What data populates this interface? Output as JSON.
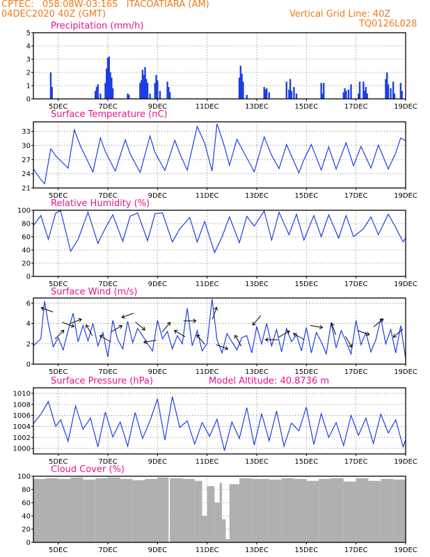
{
  "header": {
    "line1": "CPTEC:   058:08W-03:16S   ITACOATIARA (AM)",
    "line2": "04DEC2020 40Z (GMT)",
    "grid_note": "Vertical Grid Line: 40Z",
    "code": "TQ0126L028"
  },
  "colors": {
    "header": "#f07818",
    "titles": "#e8128c",
    "series": "#1c3fe0",
    "cloud": "#b0b0b0"
  },
  "chart_data": [
    {
      "type": "bar",
      "title": "Precipitation  (mm/h)",
      "x_ticks": [
        "5DEC",
        "7DEC",
        "9DEC",
        "11DEC",
        "13DEC",
        "15DEC",
        "17DEC",
        "19DEC"
      ],
      "ylim": [
        0,
        5
      ],
      "y_ticks": [
        "0",
        "1",
        "2",
        "3",
        "4",
        "5"
      ],
      "grid": true,
      "x": [
        4.7,
        4.75,
        6.5,
        6.55,
        6.6,
        6.7,
        6.9,
        6.95,
        7.0,
        7.05,
        7.1,
        7.15,
        7.2,
        7.8,
        7.85,
        8.3,
        8.35,
        8.4,
        8.45,
        8.5,
        8.55,
        8.6,
        8.7,
        8.9,
        8.95,
        9.0,
        9.1,
        9.4,
        9.45,
        9.5,
        12.3,
        12.35,
        12.4,
        12.45,
        12.6,
        13.3,
        13.35,
        13.4,
        13.5,
        14.2,
        14.3,
        14.35,
        14.4,
        14.5,
        14.6,
        15.6,
        15.65,
        15.7,
        16.5,
        16.55,
        16.6,
        16.7,
        16.8,
        17.1,
        17.15,
        17.3,
        17.35,
        17.4,
        17.45,
        18.2,
        18.25,
        18.3,
        18.4,
        18.5,
        18.55,
        18.8,
        18.85
      ],
      "values": [
        2.0,
        0.9,
        0.6,
        0.9,
        1.1,
        0.4,
        1.2,
        2.3,
        3.1,
        3.2,
        2.0,
        1.6,
        0.8,
        0.4,
        0.3,
        1.2,
        1.4,
        2.2,
        1.8,
        2.4,
        1.5,
        1.2,
        0.4,
        1.2,
        1.8,
        1.4,
        0.6,
        1.3,
        0.9,
        0.5,
        1.6,
        2.5,
        1.9,
        1.3,
        0.3,
        0.9,
        0.7,
        0.8,
        0.5,
        1.3,
        0.7,
        1.5,
        0.6,
        0.9,
        0.4,
        1.2,
        0.4,
        1.2,
        0.5,
        0.8,
        0.6,
        0.7,
        1.1,
        0.4,
        1.3,
        1.3,
        0.6,
        0.9,
        0.4,
        1.5,
        2.0,
        1.1,
        0.8,
        1.3,
        0.4,
        1.2,
        0.6
      ]
    },
    {
      "type": "line",
      "title": "Surface Temperature  (nC)",
      "x_ticks": [
        "5DEC",
        "7DEC",
        "9DEC",
        "11DEC",
        "13DEC",
        "15DEC",
        "17DEC",
        "19DEC"
      ],
      "ylim": [
        21,
        35
      ],
      "y_ticks": [
        "21",
        "24",
        "27",
        "30",
        "33"
      ],
      "grid": true,
      "x": [
        4.0,
        4.3,
        4.45,
        4.7,
        4.9,
        5.4,
        5.65,
        5.9,
        6.4,
        6.7,
        6.9,
        7.3,
        7.7,
        7.9,
        8.3,
        8.7,
        8.9,
        9.3,
        9.7,
        9.9,
        10.2,
        10.6,
        10.9,
        11.2,
        11.4,
        11.7,
        11.9,
        12.2,
        12.6,
        12.9,
        13.3,
        13.6,
        13.9,
        14.2,
        14.7,
        14.9,
        15.2,
        15.6,
        15.9,
        16.2,
        16.6,
        16.9,
        17.2,
        17.6,
        17.9,
        18.3,
        18.6,
        18.8,
        19.0
      ],
      "values": [
        25.0,
        22.8,
        21.9,
        29.3,
        27.8,
        25.2,
        33.3,
        29.8,
        24.4,
        31.6,
        28.7,
        24.6,
        31.2,
        28.2,
        24.3,
        32.0,
        28.5,
        24.7,
        31.1,
        28.3,
        24.8,
        34.0,
        30.5,
        24.6,
        34.6,
        29.8,
        25.8,
        31.3,
        27.4,
        24.4,
        31.8,
        27.9,
        25.1,
        30.2,
        24.2,
        27.0,
        30.2,
        24.8,
        29.7,
        25.0,
        30.6,
        25.7,
        29.8,
        25.2,
        30.1,
        25.0,
        28.4,
        31.6,
        31.0
      ]
    },
    {
      "type": "line",
      "title": "Relative Humidity  (%)",
      "x_ticks": [
        "5DEC",
        "7DEC",
        "9DEC",
        "11DEC",
        "13DEC",
        "15DEC",
        "17DEC",
        "19DEC"
      ],
      "ylim": [
        0,
        100
      ],
      "y_ticks": [
        "0",
        "20",
        "40",
        "60",
        "80",
        "100"
      ],
      "grid": true,
      "x": [
        4.0,
        4.3,
        4.6,
        4.9,
        5.1,
        5.5,
        5.8,
        6.2,
        6.6,
        6.9,
        7.2,
        7.6,
        7.9,
        8.2,
        8.6,
        8.9,
        9.2,
        9.6,
        9.9,
        10.3,
        10.6,
        10.9,
        11.3,
        11.6,
        11.9,
        12.3,
        12.6,
        12.9,
        13.3,
        13.6,
        13.9,
        14.3,
        14.6,
        14.9,
        15.3,
        15.6,
        15.9,
        16.3,
        16.6,
        16.9,
        17.3,
        17.6,
        17.9,
        18.3,
        18.6,
        18.9,
        19.0
      ],
      "values": [
        77,
        92,
        56,
        96,
        99,
        38,
        56,
        97,
        50,
        73,
        93,
        53,
        91,
        96,
        54,
        95,
        96,
        52,
        72,
        89,
        52,
        83,
        36,
        60,
        90,
        51,
        91,
        76,
        99,
        55,
        97,
        63,
        94,
        55,
        92,
        60,
        93,
        58,
        92,
        60,
        72,
        90,
        63,
        94,
        74,
        52,
        58
      ]
    },
    {
      "type": "line",
      "title": "Surface Wind  (m/s)",
      "x_ticks": [
        "5DEC",
        "7DEC",
        "9DEC",
        "11DEC",
        "13DEC",
        "15DEC",
        "17DEC",
        "19DEC"
      ],
      "ylim": [
        0,
        6.5
      ],
      "y_ticks": [
        "0",
        "2",
        "4",
        "6"
      ],
      "grid": true,
      "x": [
        4.0,
        4.3,
        4.45,
        4.6,
        4.8,
        5.0,
        5.2,
        5.4,
        5.6,
        5.8,
        6.0,
        6.2,
        6.4,
        6.6,
        6.8,
        7.0,
        7.2,
        7.4,
        7.6,
        7.8,
        8.0,
        8.2,
        8.4,
        8.6,
        8.8,
        9.0,
        9.2,
        9.4,
        9.6,
        9.8,
        10.0,
        10.2,
        10.4,
        10.6,
        10.8,
        11.0,
        11.2,
        11.4,
        11.6,
        11.8,
        12.0,
        12.2,
        12.4,
        12.6,
        12.8,
        13.0,
        13.2,
        13.4,
        13.6,
        13.8,
        14.0,
        14.2,
        14.4,
        14.6,
        14.8,
        15.0,
        15.2,
        15.4,
        15.6,
        15.8,
        16.0,
        16.2,
        16.4,
        16.6,
        16.8,
        17.0,
        17.2,
        17.4,
        17.6,
        17.8,
        18.0,
        18.2,
        18.4,
        18.6,
        18.8,
        19.0
      ],
      "values": [
        1.8,
        2.5,
        6.2,
        4.0,
        1.7,
        2.6,
        1.4,
        3.3,
        5.0,
        2.2,
        3.8,
        2.3,
        4.0,
        1.8,
        3.1,
        0.7,
        4.3,
        2.4,
        1.5,
        4.2,
        2.1,
        3.5,
        2.8,
        2.0,
        1.3,
        4.3,
        2.5,
        3.2,
        1.5,
        2.8,
        2.0,
        5.5,
        1.8,
        3.3,
        1.3,
        2.0,
        6.4,
        2.4,
        1.1,
        3.0,
        2.2,
        1.4,
        2.6,
        2.8,
        1.1,
        3.7,
        2.0,
        4.0,
        1.8,
        3.4,
        1.2,
        3.5,
        2.2,
        2.9,
        1.3,
        3.6,
        1.1,
        3.1,
        2.2,
        1.0,
        4.1,
        1.6,
        3.3,
        2.2,
        1.0,
        4.3,
        1.9,
        3.1,
        1.2,
        2.4,
        4.5,
        2.0,
        3.4,
        1.1,
        3.8,
        0.5
      ]
    },
    {
      "type": "line",
      "title": "Surface Pressure  (hPa)",
      "subtitle": "Model Altitude: 40.8736  m",
      "x_ticks": [
        "5DEC",
        "7DEC",
        "9DEC",
        "11DEC",
        "13DEC",
        "15DEC",
        "17DEC",
        "19DEC"
      ],
      "ylim": [
        999,
        1011
      ],
      "y_ticks": [
        "1000",
        "1002",
        "1004",
        "1006",
        "1008",
        "1010"
      ],
      "grid": true,
      "x": [
        4.0,
        4.3,
        4.6,
        4.9,
        5.1,
        5.4,
        5.7,
        6.0,
        6.3,
        6.6,
        6.9,
        7.2,
        7.5,
        7.8,
        8.1,
        8.4,
        8.7,
        9.0,
        9.3,
        9.6,
        9.9,
        10.2,
        10.5,
        10.8,
        11.1,
        11.4,
        11.7,
        12.0,
        12.3,
        12.6,
        12.9,
        13.2,
        13.5,
        13.8,
        14.1,
        14.4,
        14.7,
        15.0,
        15.3,
        15.6,
        15.9,
        16.2,
        16.5,
        16.8,
        17.1,
        17.4,
        17.7,
        18.0,
        18.3,
        18.6,
        18.9,
        19.0
      ],
      "values": [
        1004.5,
        1006.2,
        1008.5,
        1004.0,
        1005.2,
        1001.3,
        1007.7,
        1003.5,
        1005.5,
        1000.3,
        1006.6,
        1002.1,
        1004.8,
        1000.4,
        1006.5,
        1001.8,
        1005.0,
        1009.0,
        1001.5,
        1009.4,
        1003.8,
        1005.0,
        1000.8,
        1004.7,
        1002.2,
        1005.3,
        999.6,
        1004.8,
        1001.8,
        1007.4,
        1000.6,
        1006.3,
        1001.4,
        1006.8,
        1000.4,
        1004.6,
        1003.2,
        1007.5,
        1000.7,
        1006.3,
        1002.0,
        1004.7,
        1000.5,
        1006.0,
        1002.4,
        1005.5,
        1000.9,
        1006.2,
        1002.8,
        1005.2,
        1000.3,
        1001.6
      ]
    },
    {
      "type": "bar",
      "title": "Cloud Cover  (%)",
      "x_ticks": [
        "5DEC",
        "7DEC",
        "9DEC",
        "11DEC",
        "13DEC",
        "15DEC",
        "17DEC",
        "19DEC"
      ],
      "ylim": [
        0,
        100
      ],
      "y_ticks": [
        "0",
        "20",
        "40",
        "60",
        "80",
        "100"
      ],
      "grid": true,
      "x": [
        4.0,
        4.5,
        5.0,
        5.5,
        6.0,
        6.5,
        7.0,
        7.5,
        8.0,
        8.5,
        9.0,
        9.45,
        9.5,
        10.0,
        10.5,
        10.8,
        11.0,
        11.3,
        11.5,
        11.6,
        11.75,
        11.9,
        12.3,
        12.8,
        13.5,
        14.0,
        14.5,
        15.0,
        15.5,
        16.0,
        16.5,
        17.0,
        17.5,
        18.0,
        18.5,
        19.0
      ],
      "values": [
        96,
        97,
        96,
        98,
        95,
        97,
        98,
        96,
        94,
        96,
        98,
        0,
        97,
        96,
        93,
        40,
        85,
        60,
        90,
        35,
        5,
        88,
        97,
        96,
        95,
        97,
        96,
        93,
        96,
        97,
        92,
        97,
        93,
        96,
        95,
        84
      ]
    }
  ],
  "wind_arrows": {
    "x": [
      4.55,
      5.05,
      5.4,
      5.7,
      6.25,
      6.9,
      7.35,
      7.8,
      8.3,
      8.7,
      9.35,
      9.9,
      10.3,
      10.75,
      11.3,
      11.6,
      12.25,
      13.0,
      13.6,
      14.1,
      14.7,
      15.4,
      16.1,
      16.7,
      17.3,
      17.9,
      18.7
    ],
    "dir": [
      290,
      45,
      110,
      70,
      330,
      300,
      60,
      250,
      130,
      260,
      40,
      300,
      90,
      320,
      20,
      110,
      330,
      220,
      270,
      60,
      300,
      100,
      340,
      150,
      110,
      50,
      230
    ]
  }
}
